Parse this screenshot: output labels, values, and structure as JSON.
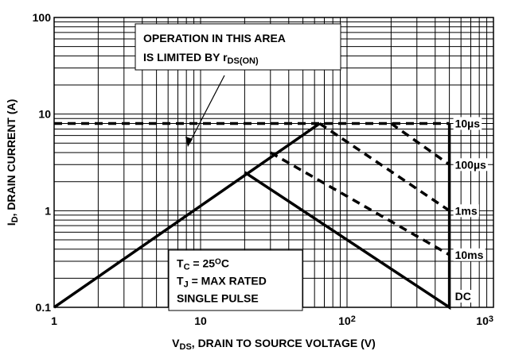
{
  "chart_data": {
    "type": "line",
    "xlabel": [
      {
        "text": "V"
      },
      {
        "text": "DS",
        "shift": "sub"
      },
      {
        "text": ", DRAIN TO SOURCE VOLTAGE (V)"
      }
    ],
    "ylabel": [
      {
        "text": "I"
      },
      {
        "text": "D",
        "shift": "sub"
      },
      {
        "text": ", DRAIN CURRENT (A)"
      }
    ],
    "xscale": "log",
    "yscale": "log",
    "grid": true,
    "xlim": [
      1,
      1000
    ],
    "ylim": [
      0.1,
      100
    ],
    "xticks": [
      1,
      10,
      {
        "value": 100,
        "label": "10",
        "sup": "2"
      },
      {
        "value": 1000,
        "label": "10",
        "sup": "3"
      }
    ],
    "yticks": [
      0.1,
      1,
      10,
      100
    ],
    "series": [
      {
        "name": "",
        "color": "#000000",
        "dash": false,
        "x": [
          1,
          65
        ],
        "values": [
          0.1,
          8
        ]
      },
      {
        "name": "10µs",
        "color": "#000000",
        "dash": true,
        "x": [
          1,
          500
        ],
        "values": [
          8,
          8
        ]
      },
      {
        "name": "100µs",
        "color": "#000000",
        "dash": true,
        "x": [
          200,
          500
        ],
        "values": [
          8,
          3
        ]
      },
      {
        "name": "1ms",
        "color": "#000000",
        "dash": true,
        "x": [
          65,
          500
        ],
        "values": [
          8,
          1
        ]
      },
      {
        "name": "10ms",
        "color": "#000000",
        "dash": true,
        "x": [
          30,
          500
        ],
        "values": [
          4,
          0.35
        ]
      },
      {
        "name": "DC",
        "color": "#000000",
        "dash": false,
        "x": [
          20,
          500,
          500
        ],
        "values": [
          2.5,
          0.1,
          8
        ]
      }
    ],
    "annotations": [
      {
        "lines": [
          [
            {
              "text": "OPERATION IN THIS AREA"
            }
          ],
          [
            {
              "text": "IS LIMITED BY r"
            },
            {
              "text": "DS(ON)",
              "shift": "sub"
            }
          ]
        ]
      },
      {
        "lines": [
          [
            {
              "text": "T"
            },
            {
              "text": "C",
              "shift": "sub"
            },
            {
              "text": " = 25"
            },
            {
              "text": "O",
              "shift": "sup"
            },
            {
              "text": "C"
            }
          ],
          [
            {
              "text": "T"
            },
            {
              "text": "J",
              "shift": "sub"
            },
            {
              "text": " = MAX RATED"
            }
          ],
          [
            {
              "text": "SINGLE PULSE"
            }
          ]
        ]
      }
    ]
  }
}
